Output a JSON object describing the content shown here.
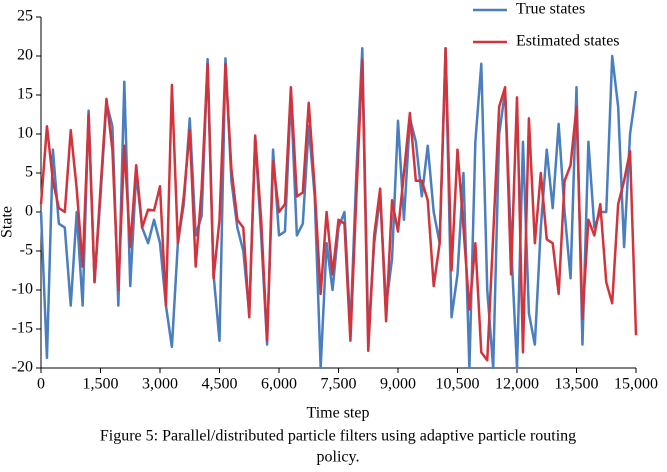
{
  "chart_data": {
    "type": "line",
    "x_label": "Time step",
    "y_label": "State",
    "caption": [
      "Figure 5: Parallel/distributed particle filters using adaptive particle routing",
      "policy."
    ],
    "x": [
      0,
      150,
      300,
      450,
      600,
      750,
      900,
      1050,
      1200,
      1350,
      1500,
      1650,
      1800,
      1950,
      2100,
      2250,
      2400,
      2550,
      2700,
      2850,
      3000,
      3150,
      3300,
      3450,
      3600,
      3750,
      3900,
      4050,
      4200,
      4350,
      4500,
      4650,
      4800,
      4950,
      5100,
      5250,
      5400,
      5550,
      5700,
      5850,
      6000,
      6150,
      6300,
      6450,
      6600,
      6750,
      6900,
      7050,
      7200,
      7350,
      7500,
      7650,
      7800,
      7950,
      8100,
      8250,
      8400,
      8550,
      8700,
      8850,
      9000,
      9150,
      9300,
      9450,
      9600,
      9750,
      9900,
      10050,
      10200,
      10350,
      10500,
      10650,
      10800,
      10950,
      11100,
      11250,
      11400,
      11550,
      11700,
      11850,
      12000,
      12150,
      12300,
      12450,
      12600,
      12750,
      12900,
      13050,
      13200,
      13350,
      13500,
      13650,
      13800,
      13950,
      14100,
      14250,
      14400,
      14550,
      14700,
      14850,
      15000
    ],
    "series": [
      {
        "name": "True states",
        "color": "#4a7ebf",
        "values": [
          0,
          -18.7,
          8,
          -1.5,
          -2,
          -12,
          0,
          -12,
          13,
          -9,
          2,
          14,
          11,
          -12,
          16.7,
          -9.5,
          5,
          -2,
          -4,
          -1,
          -4,
          -12,
          -17.3,
          -4,
          1,
          12,
          -3,
          -0.5,
          19.6,
          -8,
          -16.5,
          19.7,
          4,
          -2,
          -5,
          -13,
          9.5,
          -3,
          -17,
          8,
          -3,
          -2.5,
          15,
          -3,
          -1.5,
          11,
          2,
          -20,
          -4,
          -10,
          -2,
          0,
          -15,
          5,
          21,
          -16,
          -4,
          2,
          -12,
          -6,
          11.7,
          -1,
          12,
          9,
          2,
          8.5,
          0,
          -4,
          21,
          -13.5,
          -8,
          5,
          -20,
          9,
          19,
          -10,
          -20,
          10,
          15.5,
          -4,
          -20,
          9,
          -13,
          -17,
          -2,
          8,
          0.5,
          11.3,
          0,
          -8.5,
          16,
          -17,
          9,
          -2,
          0,
          0,
          20,
          13.5,
          -4.5,
          10,
          15.5
        ]
      },
      {
        "name": "Estimated states",
        "color": "#d1343c",
        "values": [
          1,
          11,
          4,
          0.5,
          0,
          10.5,
          3,
          -7,
          12.5,
          -9,
          3,
          14.5,
          8,
          -10,
          8.5,
          -4.5,
          6,
          -2,
          0.3,
          0.2,
          3.3,
          -12,
          16.3,
          -4,
          2,
          10.5,
          -7,
          3,
          19,
          -8.5,
          -1,
          19,
          5.5,
          -1,
          -2,
          -13.5,
          9.8,
          -1,
          -16.5,
          6.5,
          0,
          1,
          16,
          2,
          2.5,
          14,
          3,
          -10.5,
          0,
          -8,
          -1,
          -1.5,
          -16.5,
          2,
          19.5,
          -17.8,
          -3,
          3,
          -14,
          1.5,
          -2.5,
          5,
          12.7,
          4,
          4,
          1.5,
          -9.5,
          -4,
          21,
          -7.5,
          8,
          -2,
          -12.5,
          -4,
          -18,
          -19,
          -3,
          13.5,
          16,
          -8,
          14.7,
          -18,
          12,
          -4,
          5,
          -3.5,
          -4,
          -10.5,
          4,
          6,
          13.5,
          -13.7,
          -1,
          -3,
          1,
          -9,
          -11.7,
          1,
          4,
          7.8,
          -15.8
        ]
      }
    ],
    "xlim": [
      0,
      15000
    ],
    "ylim": [
      -20,
      25
    ],
    "xticks": [
      0,
      {
        "value": 1500,
        "label": "1,500"
      },
      {
        "value": 3000,
        "label": "3,000"
      },
      {
        "value": 4500,
        "label": "4,500"
      },
      {
        "value": 6000,
        "label": "6,000"
      },
      {
        "value": 7500,
        "label": "7,500"
      },
      {
        "value": 9000,
        "label": "9,000"
      },
      {
        "value": 10500,
        "label": "10,500"
      },
      {
        "value": 12000,
        "label": "12,000"
      },
      {
        "value": 13500,
        "label": "13,500"
      },
      {
        "value": 15000,
        "label": "15,000"
      }
    ],
    "yticks": [
      -20,
      -15,
      -10,
      -5,
      0,
      5,
      10,
      15,
      20,
      25
    ],
    "legend": "top-right"
  }
}
